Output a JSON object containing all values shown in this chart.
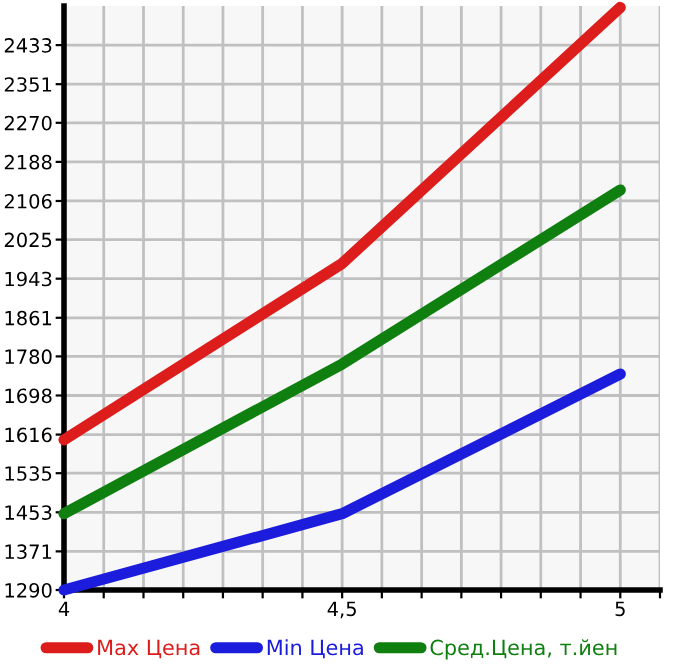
{
  "chart_data": {
    "type": "line",
    "x": [
      4,
      4.5,
      5
    ],
    "series": [
      {
        "name": "Max Цена",
        "color": "#dd1c1c",
        "values": [
          1605,
          1975,
          2512
        ]
      },
      {
        "name": "Min Цена",
        "color": "#1c1cdd",
        "values": [
          1290,
          1450,
          1743
        ]
      },
      {
        "name": "Сред.Цена, т.йен",
        "color": "#0f7f0f",
        "values": [
          1450,
          1764,
          2129
        ]
      }
    ],
    "xlim": [
      4,
      5.0714
    ],
    "xticks": [
      4,
      {
        "value": 4.0714,
        "label": null
      },
      {
        "value": 4.1429,
        "label": null
      },
      {
        "value": 4.2143,
        "label": null
      },
      {
        "value": 4.2857,
        "label": null
      },
      {
        "value": 4.3571,
        "label": null
      },
      {
        "value": 4.4286,
        "label": null
      },
      {
        "value": 4.5,
        "label": "4,5"
      },
      {
        "value": 4.5714,
        "label": null
      },
      {
        "value": 4.6429,
        "label": null
      },
      {
        "value": 4.7143,
        "label": null
      },
      {
        "value": 4.7857,
        "label": null
      },
      {
        "value": 4.8571,
        "label": null
      },
      {
        "value": 4.9286,
        "label": null
      },
      5,
      {
        "value": 5.0714,
        "label": null
      }
    ],
    "ylim": [
      1290,
      2515
    ],
    "yticks": [
      1290,
      1371,
      1453,
      1535,
      1616,
      1698,
      1780,
      1861,
      1943,
      2025,
      2106,
      2188,
      2270,
      2351,
      2433
    ],
    "grid": true,
    "legend": "bottom",
    "marker": "none",
    "line_style": "solid"
  }
}
